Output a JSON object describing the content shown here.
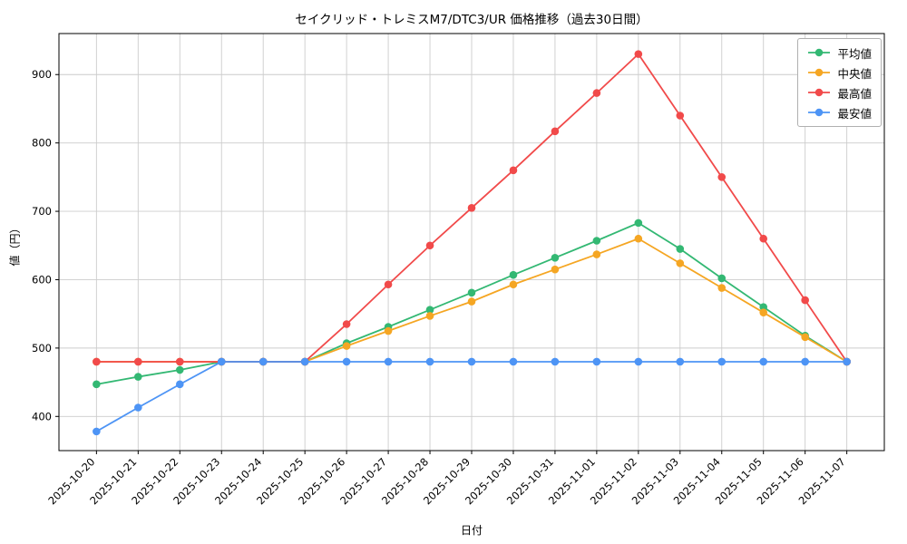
{
  "chart_data": {
    "type": "line",
    "title": "セイクリッド・トレミスM7/DTC3/UR 価格推移（過去30日間）",
    "xlabel": "日付",
    "ylabel": "値（円）",
    "ylim": [
      350,
      960
    ],
    "yticks": [
      400,
      500,
      600,
      700,
      800,
      900
    ],
    "grid": true,
    "legend_position": "upper right",
    "categories": [
      "2025-10-20",
      "2025-10-21",
      "2025-10-22",
      "2025-10-23",
      "2025-10-24",
      "2025-10-25",
      "2025-10-26",
      "2025-10-27",
      "2025-10-28",
      "2025-10-29",
      "2025-10-30",
      "2025-10-31",
      "2025-11-01",
      "2025-11-02",
      "2025-11-03",
      "2025-11-04",
      "2025-11-05",
      "2025-11-06",
      "2025-11-07"
    ],
    "series": [
      {
        "key": "avg",
        "name": "平均値",
        "color": "#33b873",
        "values": [
          447,
          458,
          468,
          480,
          480,
          480,
          507,
          531,
          556,
          581,
          607,
          632,
          657,
          683,
          645,
          602,
          560,
          518,
          480
        ]
      },
      {
        "key": "median",
        "name": "中央値",
        "color": "#f5a623",
        "values": [
          480,
          480,
          480,
          480,
          480,
          480,
          503,
          525,
          547,
          568,
          593,
          615,
          637,
          660,
          624,
          588,
          552,
          516,
          480
        ]
      },
      {
        "key": "max",
        "name": "最高値",
        "color": "#f14a4a",
        "values": [
          480,
          480,
          480,
          480,
          480,
          480,
          535,
          593,
          650,
          705,
          760,
          817,
          873,
          930,
          840,
          750,
          660,
          570,
          480
        ]
      },
      {
        "key": "min",
        "name": "最安値",
        "color": "#4d94f5",
        "values": [
          378,
          413,
          447,
          480,
          480,
          480,
          480,
          480,
          480,
          480,
          480,
          480,
          480,
          480,
          480,
          480,
          480,
          480,
          480
        ]
      }
    ]
  }
}
